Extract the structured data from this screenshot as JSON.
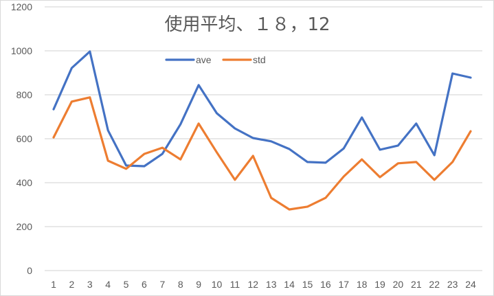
{
  "chart_data": {
    "type": "line",
    "title": "使用平均、１８，12",
    "xlabel": "",
    "ylabel": "",
    "categories": [
      "1",
      "2",
      "3",
      "4",
      "5",
      "6",
      "7",
      "8",
      "9",
      "10",
      "11",
      "12",
      "13",
      "14",
      "15",
      "16",
      "17",
      "18",
      "19",
      "20",
      "21",
      "22",
      "23",
      "24"
    ],
    "series": [
      {
        "name": "ave",
        "color": "#4472C4",
        "values": [
          734,
          922,
          997,
          638,
          478,
          475,
          531,
          666,
          844,
          716,
          647,
          603,
          588,
          553,
          494,
          491,
          556,
          697,
          550,
          569,
          669,
          525,
          897,
          878
        ]
      },
      {
        "name": "std",
        "color": "#ED7D31",
        "values": [
          606,
          769,
          788,
          500,
          463,
          531,
          559,
          506,
          669,
          538,
          413,
          522,
          331,
          278,
          291,
          331,
          428,
          506,
          425,
          488,
          494,
          413,
          494,
          634
        ]
      }
    ],
    "ylim": [
      0,
      1200
    ],
    "yticks": [
      0,
      200,
      400,
      600,
      800,
      1000,
      1200
    ],
    "grid": true,
    "legend_position": "top"
  }
}
